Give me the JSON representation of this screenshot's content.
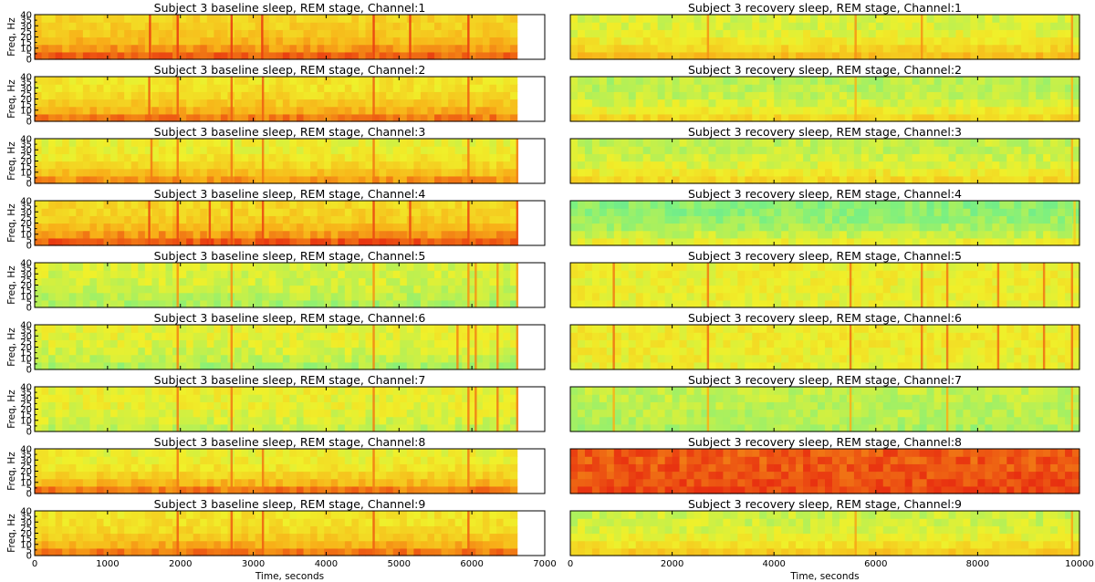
{
  "chart_data": [
    {
      "column": "left",
      "type": "heatmap",
      "xlabel": "Time, seconds",
      "ylabel": "Freq, Hz",
      "xlim": [
        0,
        7000
      ],
      "ylim": [
        0,
        40
      ],
      "data_extent_x": 6620,
      "xticks": [
        "0",
        "1000",
        "2000",
        "3000",
        "4000",
        "5000",
        "6000",
        "7000"
      ],
      "yticks": [
        "0",
        "10",
        "20",
        "30",
        "40"
      ],
      "yticks_minor": [
        "5",
        "15",
        "25",
        "35"
      ],
      "colormap": [
        "#2fd2c8",
        "#7cf080",
        "#f0f02a",
        "#f8b018",
        "#e83010"
      ],
      "panels": [
        {
          "title": "Subject 3 baseline sleep, REM stage, Channel:1",
          "mean_level": 0.62,
          "low_band_level": 0.9,
          "stripe_times": [
            1580,
            1960,
            2700,
            3120,
            4650,
            5150,
            5950
          ]
        },
        {
          "title": "Subject 3 baseline sleep, REM stage, Channel:2",
          "mean_level": 0.55,
          "low_band_level": 0.85,
          "stripe_times": [
            1570,
            1960,
            2700,
            3130,
            4650,
            5950
          ]
        },
        {
          "title": "Subject 3 baseline sleep, REM stage, Channel:3",
          "mean_level": 0.5,
          "low_band_level": 0.8,
          "stripe_times": [
            1600,
            1960,
            2700,
            3130,
            4650,
            5950,
            6620
          ]
        },
        {
          "title": "Subject 3 baseline sleep, REM stage, Channel:4",
          "mean_level": 0.6,
          "low_band_level": 0.92,
          "stripe_times": [
            1570,
            1960,
            2400,
            2700,
            3130,
            4650,
            5150,
            5950,
            6620
          ]
        },
        {
          "title": "Subject 3 baseline sleep, REM stage, Channel:5",
          "mean_level": 0.45,
          "low_band_level": 0.35,
          "stripe_times": [
            1960,
            2700,
            4650,
            5950,
            6050,
            6350,
            6620
          ]
        },
        {
          "title": "Subject 3 baseline sleep, REM stage, Channel:6",
          "mean_level": 0.48,
          "low_band_level": 0.35,
          "stripe_times": [
            1960,
            2700,
            4650,
            5800,
            5950,
            6050,
            6350,
            6620
          ]
        },
        {
          "title": "Subject 3 baseline sleep, REM stage, Channel:7",
          "mean_level": 0.5,
          "low_band_level": 0.4,
          "stripe_times": [
            1960,
            2700,
            4650,
            5950,
            6050,
            6350,
            6620
          ]
        },
        {
          "title": "Subject 3 baseline sleep, REM stage, Channel:8",
          "mean_level": 0.5,
          "low_band_level": 0.85,
          "stripe_times": [
            1960,
            2700,
            3130,
            4650,
            5950
          ]
        },
        {
          "title": "Subject 3 baseline sleep, REM stage, Channel:9",
          "mean_level": 0.55,
          "low_band_level": 0.85,
          "stripe_times": [
            1960,
            2700,
            3130,
            4650,
            5950
          ]
        }
      ]
    },
    {
      "column": "right",
      "type": "heatmap",
      "xlabel": "Time, seconds",
      "ylabel": "",
      "xlim": [
        0,
        10000
      ],
      "ylim": [
        0,
        40
      ],
      "data_extent_x": 10000,
      "xticks": [
        "0",
        "2000",
        "4000",
        "6000",
        "8000",
        "10000"
      ],
      "yticks": [],
      "yticks_minor": [],
      "colormap": [
        "#2fd2c8",
        "#7cf080",
        "#f0f02a",
        "#f8b018",
        "#e83010"
      ],
      "panels": [
        {
          "title": "Subject 3   recovery sleep, REM stage, Channel:1",
          "mean_level": 0.45,
          "low_band_level": 0.7,
          "stripe_times": [
            2700,
            5600,
            6900,
            9850
          ]
        },
        {
          "title": "Subject 3   recovery sleep, REM stage, Channel:2",
          "mean_level": 0.38,
          "low_band_level": 0.6,
          "stripe_times": [
            5600,
            9850
          ]
        },
        {
          "title": "Subject 3   recovery sleep, REM stage, Channel:3",
          "mean_level": 0.4,
          "low_band_level": 0.6,
          "stripe_times": [
            9850
          ]
        },
        {
          "title": "Subject 3   recovery sleep, REM stage, Channel:4",
          "mean_level": 0.28,
          "low_band_level": 0.5,
          "stripe_times": [
            9900
          ]
        },
        {
          "title": "Subject 3   recovery sleep, REM stage, Channel:5",
          "mean_level": 0.5,
          "low_band_level": 0.5,
          "stripe_times": [
            850,
            2700,
            5500,
            6900,
            7400,
            8400,
            9300,
            9850
          ]
        },
        {
          "title": "Subject 3   recovery sleep, REM stage, Channel:6",
          "mean_level": 0.52,
          "low_band_level": 0.5,
          "stripe_times": [
            850,
            2700,
            5500,
            6900,
            7400,
            8400,
            9300,
            9850
          ]
        },
        {
          "title": "Subject 3   recovery sleep, REM stage, Channel:7",
          "mean_level": 0.4,
          "low_band_level": 0.35,
          "stripe_times": [
            850,
            2700,
            5500,
            7400,
            9850
          ]
        },
        {
          "title": "Subject 3   recovery sleep, REM stage, Channel:8",
          "mean_level": 0.92,
          "low_band_level": 0.97,
          "stripe_times": []
        },
        {
          "title": "Subject 3   recovery sleep, REM stage, Channel:9",
          "mean_level": 0.42,
          "low_band_level": 0.65,
          "stripe_times": [
            5600,
            9850
          ]
        }
      ]
    }
  ]
}
